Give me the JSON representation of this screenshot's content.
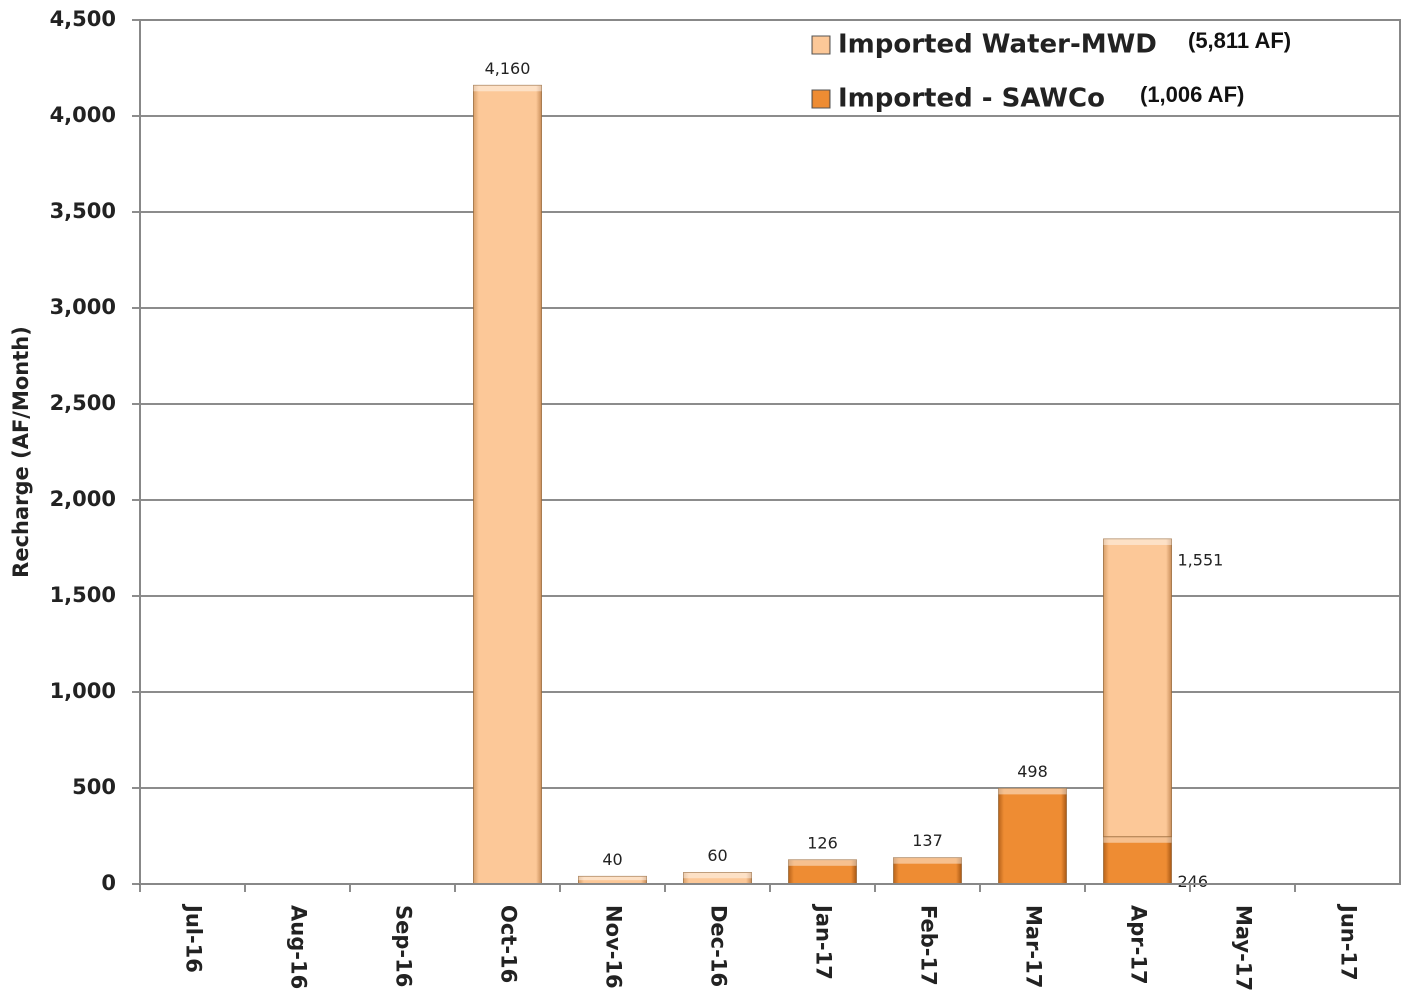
{
  "chart_data": {
    "type": "stacked_bar",
    "y_label": "Recharge (AF/Month)",
    "categories": [
      "Jul-16",
      "Aug-16",
      "Sep-16",
      "Oct-16",
      "Nov-16",
      "Dec-16",
      "Jan-17",
      "Feb-17",
      "Mar-17",
      "Apr-17",
      "May-17",
      "Jun-17"
    ],
    "series": [
      {
        "name": "Imported Water-MWD",
        "note": "(5,811 AF)",
        "color": "#fcc898",
        "values": [
          null,
          null,
          null,
          4160,
          40,
          60,
          null,
          null,
          null,
          1551,
          null,
          null
        ],
        "value_labels": [
          null,
          null,
          null,
          "4,160",
          "40",
          "60",
          null,
          null,
          null,
          "1,551",
          null,
          null
        ]
      },
      {
        "name": "Imported - SAWCo",
        "note": "(1,006 AF)",
        "color": "#ee8c33",
        "values": [
          null,
          null,
          null,
          null,
          null,
          null,
          126,
          137,
          498,
          246,
          null,
          null
        ],
        "value_labels": [
          null,
          null,
          null,
          null,
          null,
          null,
          "126",
          "137",
          "498",
          "246",
          null,
          null
        ]
      }
    ],
    "ylim": [
      0,
      4500
    ],
    "yticks": [
      0,
      500,
      {
        "value": 1000,
        "label": "1,000"
      },
      {
        "value": 1500,
        "label": "1,500"
      },
      {
        "value": 2000,
        "label": "2,000"
      },
      {
        "value": 2500,
        "label": "2,500"
      },
      {
        "value": 3000,
        "label": "3,000"
      },
      {
        "value": 3500,
        "label": "3,500"
      },
      {
        "value": 4000,
        "label": "4,000"
      },
      {
        "value": 4500,
        "label": "4,500"
      }
    ],
    "grid": true,
    "legend": "upper right"
  }
}
